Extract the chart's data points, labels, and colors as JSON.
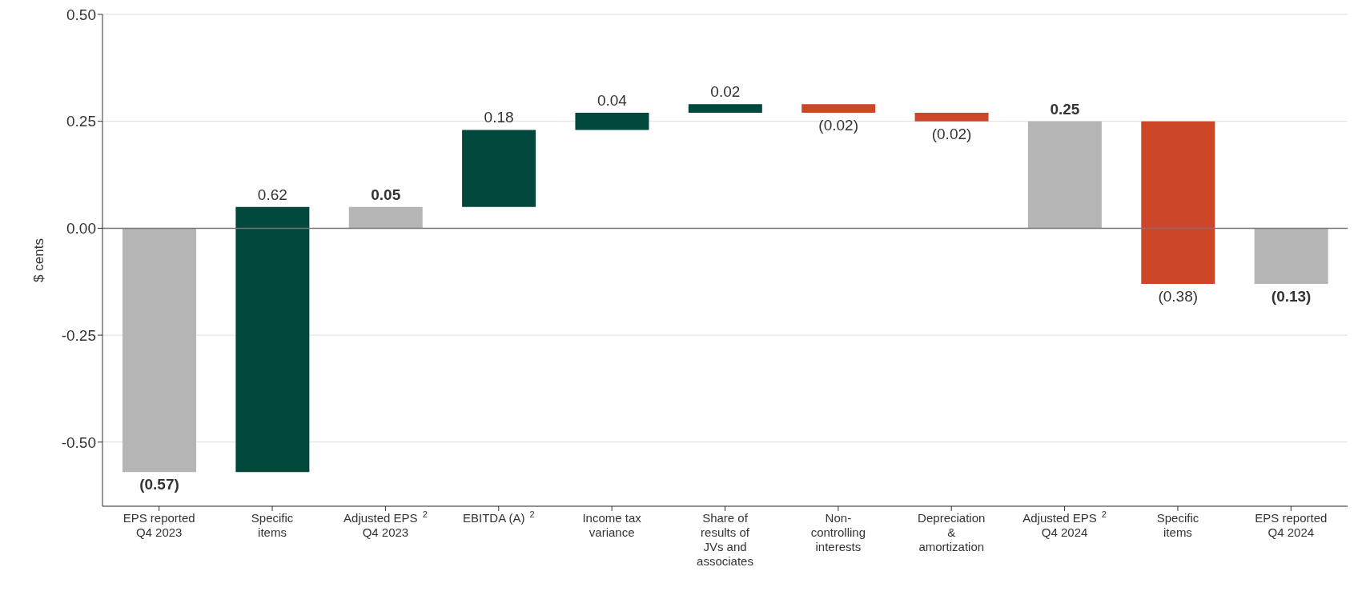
{
  "chart_data": {
    "type": "bar",
    "ylabel": "$ cents",
    "categories": [
      "EPS reported Q4 2023",
      "Specific items",
      "Adjusted EPS$^{2}$ Q4 2023",
      "EBITDA (A)$^{2}$",
      "Income tax variance",
      "Share of results of JVs and associates",
      "Non-controlling interests",
      "Depreciation & amortization",
      "Adjusted EPS$^{2}$ Q4 2024",
      "Specific items",
      "EPS reported Q4 2024"
    ],
    "values": [
      -0.57,
      0.62,
      0.05,
      0.18,
      0.04,
      0.02,
      -0.02,
      -0.02,
      0.25,
      -0.38,
      -0.13
    ],
    "base": [
      0,
      -0.57,
      0,
      0.05,
      0.23,
      0.27,
      0.29,
      0.27,
      0,
      0.25,
      0
    ],
    "colors": [
      "#b5b5b5",
      "#00473c",
      "#b5b5b5",
      "#00473c",
      "#00473c",
      "#00473c",
      "#cc4628",
      "#cc4628",
      "#b5b5b5",
      "#cc4628",
      "#b5b5b5"
    ],
    "value_labels": [
      "(0.57)",
      "0.62",
      "0.05",
      "0.18",
      "0.04",
      "0.02",
      "(0.02)",
      "(0.02)",
      "0.25",
      "(0.38)",
      "(0.13)"
    ],
    "ylim": [
      -0.65,
      0.5
    ],
    "yticks": [
      {
        "value": -0.5,
        "label": "-0.50"
      },
      {
        "value": -0.25,
        "label": "-0.25"
      },
      {
        "value": 0,
        "label": "0.00"
      },
      {
        "value": 0.25,
        "label": "0.25"
      },
      {
        "value": 0.5,
        "label": "0.50"
      }
    ],
    "grid": "y",
    "ref_lines": [
      {
        "axis": "y",
        "value": 0,
        "color": "#777777"
      }
    ]
  }
}
